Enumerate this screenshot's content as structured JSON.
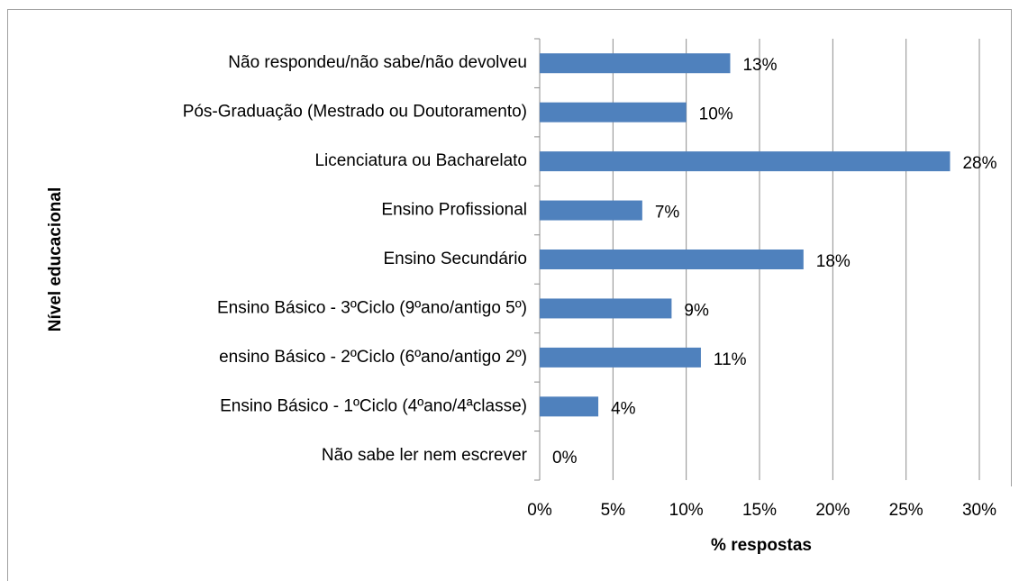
{
  "chart_data": {
    "type": "barh",
    "categories": [
      "Não respondeu/não sabe/não devolveu",
      "Pós-Graduação (Mestrado ou Doutoramento)",
      "Licenciatura ou Bacharelato",
      "Ensino Profissional",
      "Ensino Secundário",
      "Ensino Básico - 3ºCiclo (9ºano/antigo 5º)",
      "ensino Básico - 2ºCiclo (6ºano/antigo 2º)",
      "Ensino Básico - 1ºCiclo (4ºano/4ªclasse)",
      "Não sabe ler nem escrever"
    ],
    "values": [
      13,
      10,
      28,
      7,
      18,
      9,
      11,
      4,
      0
    ],
    "value_labels": [
      "13%",
      "10%",
      "28%",
      "7%",
      "18%",
      "9%",
      "11%",
      "4%",
      "0%"
    ],
    "color": "#4f81bd",
    "xlim": [
      0,
      30
    ],
    "xticks": [
      {
        "value": 0,
        "label": "0%"
      },
      {
        "value": 5,
        "label": "5%"
      },
      {
        "value": 10,
        "label": "10%"
      },
      {
        "value": 15,
        "label": "15%"
      },
      {
        "value": 20,
        "label": "20%"
      },
      {
        "value": 25,
        "label": "25%"
      },
      {
        "value": 30,
        "label": "30%"
      }
    ],
    "x_label": "% respostas",
    "y_label": "Nível educacional",
    "grid": true
  }
}
